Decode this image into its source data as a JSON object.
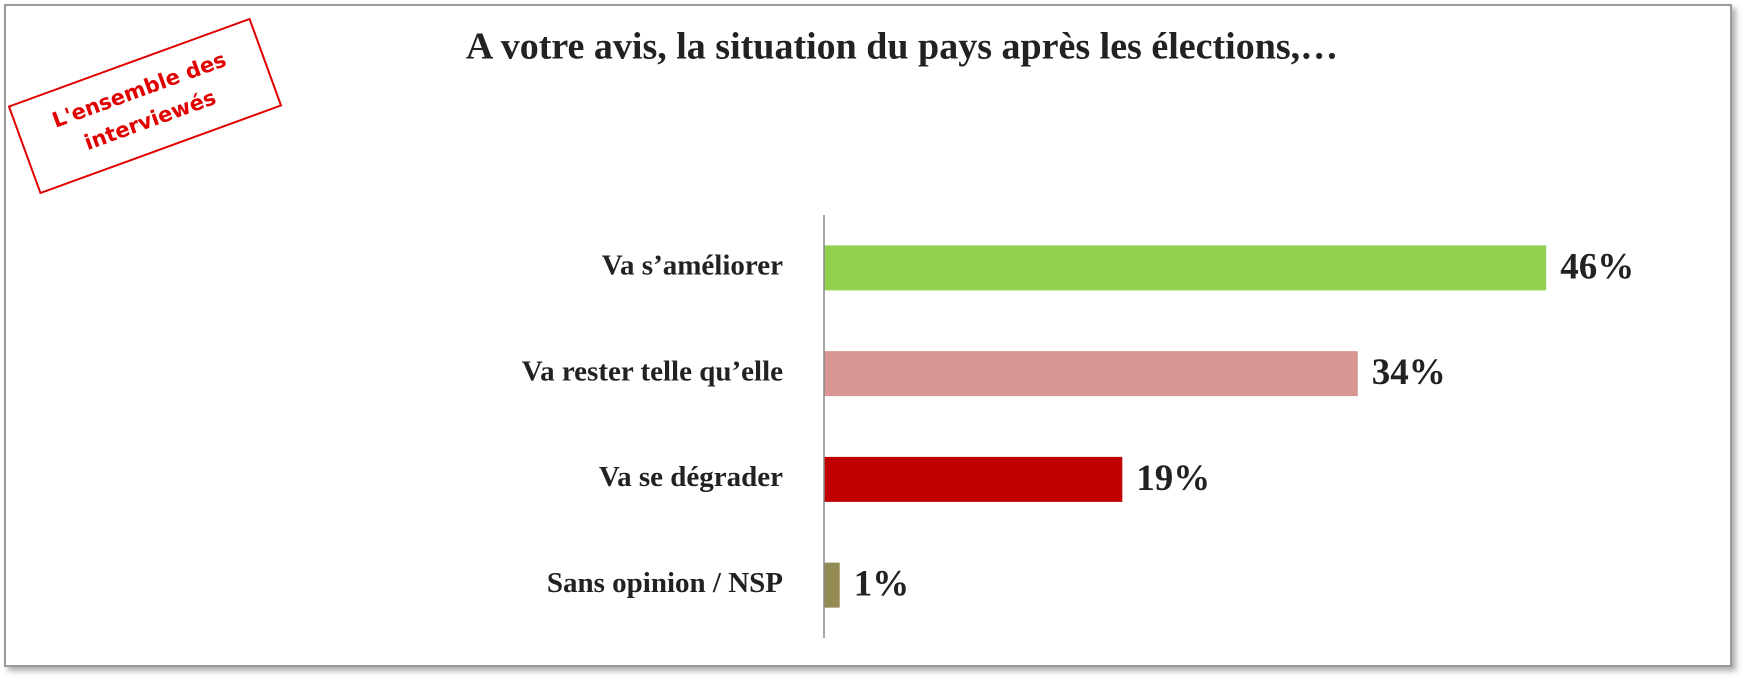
{
  "chart_data": {
    "type": "bar",
    "orientation": "horizontal",
    "title": "A votre avis, la situation du pays après les élections,…",
    "stamp": [
      "L'ensemble des",
      "interviewés"
    ],
    "categories": [
      "Va s’améliorer",
      "Va rester telle qu’elle",
      "Va se dégrader",
      "Sans opinion / NSP"
    ],
    "values": [
      46,
      34,
      19,
      1
    ],
    "value_labels": [
      "46%",
      "34%",
      "19%",
      "1%"
    ],
    "colors": [
      "#92d050",
      "#d99594",
      "#c00000",
      "#948a54"
    ]
  }
}
